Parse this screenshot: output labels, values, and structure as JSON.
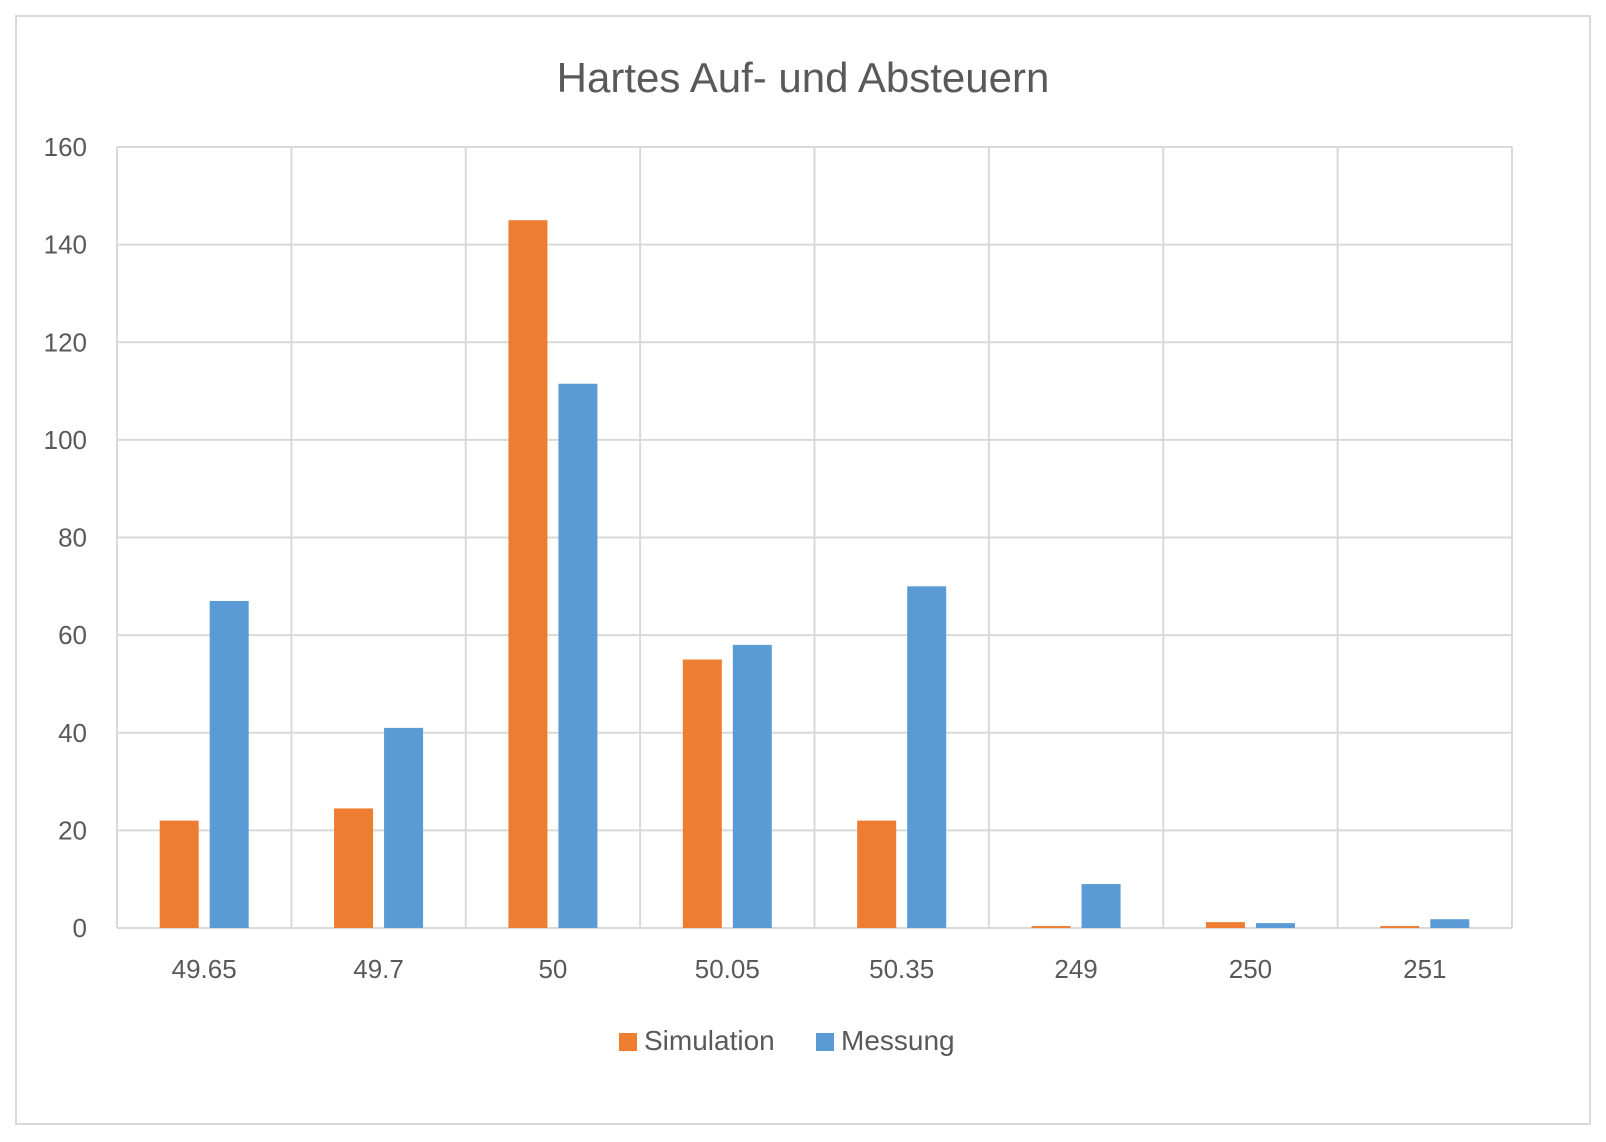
{
  "chart_data": {
    "type": "bar",
    "title": "Hartes Auf- und Absteuern",
    "xlabel": "",
    "ylabel": "",
    "categories": [
      "49.65",
      "49.7",
      "50",
      "50.05",
      "50.35",
      "249",
      "250",
      "251"
    ],
    "series": [
      {
        "name": "Simulation",
        "color": "#ed7d31",
        "values": [
          22,
          24.5,
          145,
          55,
          22,
          0.4,
          1.2,
          0.4
        ]
      },
      {
        "name": "Messung",
        "color": "#5b9bd5",
        "values": [
          67,
          41,
          111.5,
          58,
          70,
          9,
          1,
          1.8
        ]
      }
    ],
    "ylim": [
      0,
      160
    ],
    "yticks": [
      0,
      20,
      40,
      60,
      80,
      100,
      120,
      140,
      160
    ],
    "grid": true,
    "legend": "bottom"
  }
}
